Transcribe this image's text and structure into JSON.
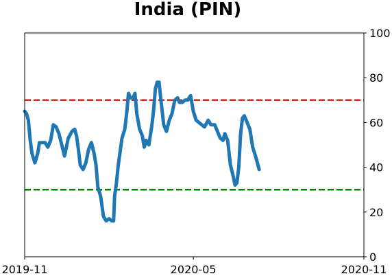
{
  "chart_data": {
    "type": "line",
    "title": "India (PIN)",
    "xlabel": "",
    "ylabel": "",
    "x_tick_labels": [
      "2019-11",
      "2020-05",
      "2020-11"
    ],
    "x_ticks": [
      "2019-11-01",
      "2020-05-01",
      "2020-11-01"
    ],
    "xlim": [
      "2019-11-01",
      "2020-11-01"
    ],
    "y_tick_labels": [
      "0",
      "20",
      "40",
      "60",
      "80",
      "100"
    ],
    "y_ticks": [
      0,
      20,
      40,
      60,
      80,
      100
    ],
    "ylim": [
      0,
      100
    ],
    "y_axis_side": "right",
    "grid": false,
    "reference_lines": [
      {
        "y": 70,
        "color": "#d62728",
        "style": "dashed"
      },
      {
        "y": 30,
        "color": "#008000",
        "style": "dashed"
      }
    ],
    "series": [
      {
        "color": "#1f77b4",
        "points": [
          [
            "2019-11-01",
            65
          ],
          [
            "2019-11-03",
            64
          ],
          [
            "2019-11-05",
            61
          ],
          [
            "2019-11-07",
            52
          ],
          [
            "2019-11-09",
            46
          ],
          [
            "2019-11-12",
            42
          ],
          [
            "2019-11-15",
            46
          ],
          [
            "2019-11-17",
            51
          ],
          [
            "2019-11-20",
            51
          ],
          [
            "2019-11-23",
            51
          ],
          [
            "2019-11-26",
            49
          ],
          [
            "2019-11-29",
            52
          ],
          [
            "2019-12-02",
            59
          ],
          [
            "2019-12-05",
            58
          ],
          [
            "2019-12-08",
            55
          ],
          [
            "2019-12-11",
            50
          ],
          [
            "2019-12-14",
            45
          ],
          [
            "2019-12-18",
            53
          ],
          [
            "2019-12-22",
            56
          ],
          [
            "2019-12-25",
            57
          ],
          [
            "2019-12-27",
            54
          ],
          [
            "2019-12-29",
            48
          ],
          [
            "2019-12-31",
            41
          ],
          [
            "2020-01-03",
            39
          ],
          [
            "2020-01-06",
            42
          ],
          [
            "2020-01-09",
            48
          ],
          [
            "2020-01-12",
            51
          ],
          [
            "2020-01-15",
            46
          ],
          [
            "2020-01-17",
            41
          ],
          [
            "2020-01-19",
            31
          ],
          [
            "2020-01-22",
            27
          ],
          [
            "2020-01-25",
            18
          ],
          [
            "2020-01-28",
            16
          ],
          [
            "2020-01-31",
            17
          ],
          [
            "2020-02-03",
            16
          ],
          [
            "2020-02-05",
            16
          ],
          [
            "2020-02-06",
            27
          ],
          [
            "2020-02-08",
            33
          ],
          [
            "2020-02-10",
            41
          ],
          [
            "2020-02-14",
            53
          ],
          [
            "2020-02-17",
            57
          ],
          [
            "2020-02-19",
            64
          ],
          [
            "2020-02-21",
            73
          ],
          [
            "2020-02-23",
            71
          ],
          [
            "2020-02-26",
            71
          ],
          [
            "2020-02-28",
            73
          ],
          [
            "2020-03-01",
            64
          ],
          [
            "2020-03-04",
            57
          ],
          [
            "2020-03-07",
            54
          ],
          [
            "2020-03-09",
            49
          ],
          [
            "2020-03-11",
            52
          ],
          [
            "2020-03-14",
            50
          ],
          [
            "2020-03-17",
            58
          ],
          [
            "2020-03-19",
            65
          ],
          [
            "2020-03-21",
            75
          ],
          [
            "2020-03-23",
            78
          ],
          [
            "2020-03-25",
            78
          ],
          [
            "2020-03-27",
            70
          ],
          [
            "2020-03-30",
            59
          ],
          [
            "2020-04-02",
            56
          ],
          [
            "2020-04-05",
            61
          ],
          [
            "2020-04-08",
            64
          ],
          [
            "2020-04-11",
            70
          ],
          [
            "2020-04-14",
            71
          ],
          [
            "2020-04-16",
            69
          ],
          [
            "2020-04-19",
            69
          ],
          [
            "2020-04-22",
            70
          ],
          [
            "2020-04-25",
            70
          ],
          [
            "2020-04-28",
            72
          ],
          [
            "2020-05-01",
            65
          ],
          [
            "2020-05-04",
            61
          ],
          [
            "2020-05-07",
            60
          ],
          [
            "2020-05-10",
            59
          ],
          [
            "2020-05-13",
            58
          ],
          [
            "2020-05-17",
            61
          ],
          [
            "2020-05-20",
            59
          ],
          [
            "2020-05-24",
            59
          ],
          [
            "2020-05-27",
            56
          ],
          [
            "2020-05-30",
            53
          ],
          [
            "2020-06-02",
            52
          ],
          [
            "2020-06-04",
            55
          ],
          [
            "2020-06-07",
            52
          ],
          [
            "2020-06-10",
            41
          ],
          [
            "2020-06-13",
            36
          ],
          [
            "2020-06-15",
            32
          ],
          [
            "2020-06-17",
            33
          ],
          [
            "2020-06-19",
            40
          ],
          [
            "2020-06-21",
            55
          ],
          [
            "2020-06-23",
            62
          ],
          [
            "2020-06-25",
            63
          ],
          [
            "2020-06-28",
            60
          ],
          [
            "2020-07-01",
            57
          ],
          [
            "2020-07-04",
            49
          ],
          [
            "2020-07-07",
            45
          ],
          [
            "2020-07-09",
            42
          ],
          [
            "2020-07-11",
            39
          ]
        ]
      }
    ]
  }
}
